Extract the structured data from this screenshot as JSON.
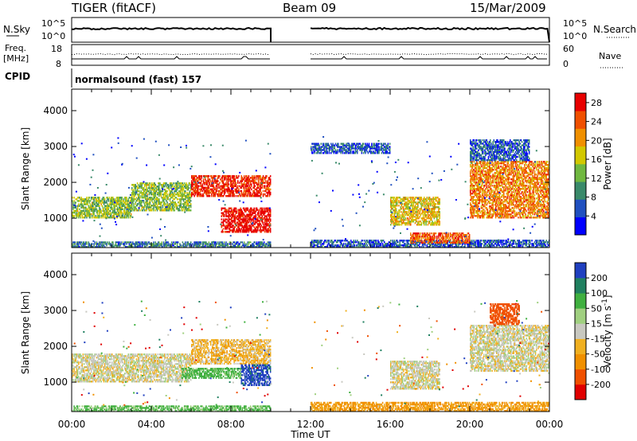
{
  "header": {
    "station": "TIGER (fitACF)",
    "beam": "Beam 09",
    "date": "15/Mar/2009"
  },
  "strips": {
    "nsky_label": "N.Sky",
    "nsearch_label": "N.Search",
    "freq_label_1": "Freq.",
    "freq_label_2": "[MHz]",
    "nave_label": "Nave",
    "cpid_label": "CPID",
    "cpid_value": "normalsound (fast) 157",
    "noise_ticks_left": [
      "10^5",
      "10^0"
    ],
    "noise_ticks_right": [
      "10^5",
      "10^0"
    ],
    "freq_ticks": [
      "18",
      "8"
    ],
    "nave_ticks": [
      "60",
      "0"
    ]
  },
  "colors": {
    "power": [
      "#0000ff",
      "#2050c0",
      "#3a8a6a",
      "#70b840",
      "#d2c800",
      "#f09000",
      "#f05000",
      "#e80000"
    ],
    "velocity": [
      "#e00000",
      "#f05000",
      "#f09000",
      "#f0b020",
      "#c8c8c0",
      "#a0d080",
      "#40b040",
      "#208060",
      "#2040c0"
    ]
  },
  "chart_data": [
    {
      "type": "heatmap",
      "title": "",
      "xlabel": "Time UT",
      "ylabel": "Slant Range [km]",
      "xlim": [
        "00:00",
        "24:00"
      ],
      "ylim": [
        180,
        4600
      ],
      "x_ticks": [
        "00:00",
        "04:00",
        "08:00",
        "12:00",
        "16:00",
        "20:00",
        "00:00"
      ],
      "y_ticks": [
        1000,
        2000,
        3000,
        4000
      ],
      "colorbar": {
        "label": "Power [dB]",
        "ticks": [
          4,
          8,
          12,
          16,
          20,
          24,
          28
        ],
        "range": [
          0,
          30
        ]
      },
      "data_gap_hours": [
        10.0,
        12.0
      ],
      "echo_regions": [
        {
          "t_start": 0.0,
          "t_end": 10.0,
          "range_low_km": 180,
          "range_high_km": 350,
          "power_db": 8
        },
        {
          "t_start": 0.0,
          "t_end": 3.0,
          "range_low_km": 1000,
          "range_high_km": 1600,
          "power_db": 14
        },
        {
          "t_start": 3.0,
          "t_end": 6.0,
          "range_low_km": 1200,
          "range_high_km": 2000,
          "power_db": 14
        },
        {
          "t_start": 6.0,
          "t_end": 10.0,
          "range_low_km": 1600,
          "range_high_km": 2200,
          "power_db": 27
        },
        {
          "t_start": 7.5,
          "t_end": 10.0,
          "range_low_km": 600,
          "range_high_km": 1300,
          "power_db": 29
        },
        {
          "t_start": 12.0,
          "t_end": 24.0,
          "range_low_km": 180,
          "range_high_km": 400,
          "power_db": 6
        },
        {
          "t_start": 16.0,
          "t_end": 18.5,
          "range_low_km": 800,
          "range_high_km": 1600,
          "power_db": 18
        },
        {
          "t_start": 17.0,
          "t_end": 20.0,
          "range_low_km": 300,
          "range_high_km": 600,
          "power_db": 24
        },
        {
          "t_start": 20.0,
          "t_end": 24.0,
          "range_low_km": 1000,
          "range_high_km": 2600,
          "power_db": 22
        },
        {
          "t_start": 20.0,
          "t_end": 23.0,
          "range_low_km": 2600,
          "range_high_km": 3200,
          "power_db": 6
        },
        {
          "t_start": 12.0,
          "t_end": 16.0,
          "range_low_km": 2800,
          "range_high_km": 3100,
          "power_db": 6
        }
      ]
    },
    {
      "type": "heatmap",
      "title": "",
      "xlabel": "Time UT",
      "ylabel": "Slant Range [km]",
      "xlim": [
        "00:00",
        "24:00"
      ],
      "ylim": [
        180,
        4600
      ],
      "x_ticks": [
        "00:00",
        "04:00",
        "08:00",
        "12:00",
        "16:00",
        "20:00",
        "00:00"
      ],
      "y_ticks": [
        1000,
        2000,
        3000,
        4000
      ],
      "colorbar": {
        "label": "Velocity [m s^-1]",
        "ticks": [
          200,
          100,
          50,
          15,
          -15,
          -50,
          -100,
          -200
        ],
        "range": [
          -250,
          250
        ]
      },
      "data_gap_hours": [
        10.0,
        12.0
      ],
      "echo_regions": [
        {
          "t_start": 0.0,
          "t_end": 10.0,
          "range_low_km": 180,
          "range_high_km": 350,
          "velocity_ms": 60
        },
        {
          "t_start": 0.0,
          "t_end": 6.0,
          "range_low_km": 1000,
          "range_high_km": 1800,
          "velocity_ms": 0
        },
        {
          "t_start": 6.0,
          "t_end": 10.0,
          "range_low_km": 1500,
          "range_high_km": 2200,
          "velocity_ms": -30
        },
        {
          "t_start": 5.5,
          "t_end": 8.5,
          "range_low_km": 1100,
          "range_high_km": 1400,
          "velocity_ms": 70
        },
        {
          "t_start": 8.5,
          "t_end": 10.0,
          "range_low_km": 900,
          "range_high_km": 1500,
          "velocity_ms": 220
        },
        {
          "t_start": 12.0,
          "t_end": 24.0,
          "range_low_km": 180,
          "range_high_km": 450,
          "velocity_ms": -60
        },
        {
          "t_start": 16.0,
          "t_end": 18.5,
          "range_low_km": 800,
          "range_high_km": 1600,
          "velocity_ms": 0
        },
        {
          "t_start": 20.0,
          "t_end": 24.0,
          "range_low_km": 1300,
          "range_high_km": 2600,
          "velocity_ms": 0
        },
        {
          "t_start": 21.0,
          "t_end": 22.5,
          "range_low_km": 2600,
          "range_high_km": 3200,
          "velocity_ms": -150
        }
      ]
    }
  ]
}
